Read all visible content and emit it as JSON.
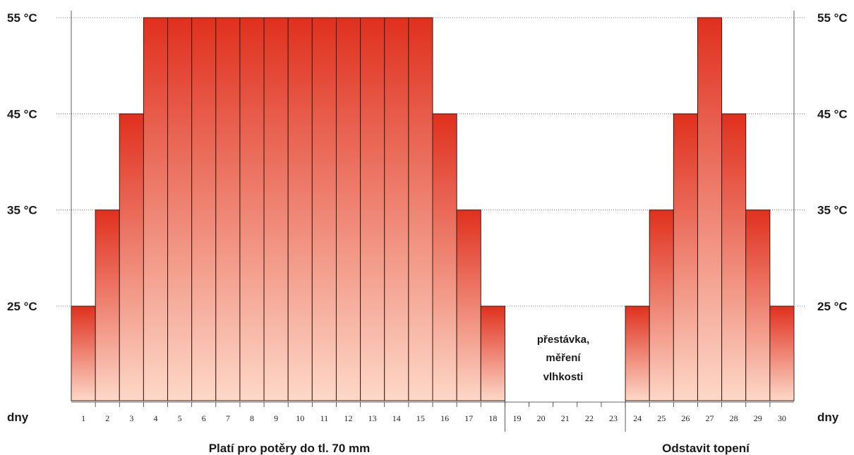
{
  "chart_data": {
    "type": "bar",
    "x_unit_label": "dny",
    "y_tick_labels": [
      "25 °C",
      "35 °C",
      "45 °C",
      "55 °C"
    ],
    "y_ticks": [
      25,
      35,
      45,
      55
    ],
    "ylim": [
      15,
      55
    ],
    "grid": "horizontal dotted",
    "categories": [
      "1",
      "2",
      "3",
      "4",
      "5",
      "6",
      "7",
      "8",
      "9",
      "10",
      "11",
      "12",
      "13",
      "14",
      "15",
      "16",
      "17",
      "18",
      "19",
      "20",
      "21",
      "22",
      "23",
      "24",
      "25",
      "26",
      "27",
      "28",
      "29",
      "30"
    ],
    "values": [
      25,
      35,
      45,
      55,
      55,
      55,
      55,
      55,
      55,
      55,
      55,
      55,
      55,
      55,
      55,
      45,
      35,
      25,
      null,
      null,
      null,
      null,
      null,
      25,
      35,
      45,
      55,
      45,
      35,
      25
    ],
    "pause_note": [
      "přestávka,",
      "měření",
      "vlhkosti"
    ],
    "footer_left": "Platí pro potěry do tl. 70 mm",
    "footer_right": "Odstavit topení"
  },
  "colors": {
    "bar_top": "#e0301e",
    "bar_bottom": "#fdd8c8",
    "bar_stroke": "#3a1a10"
  }
}
